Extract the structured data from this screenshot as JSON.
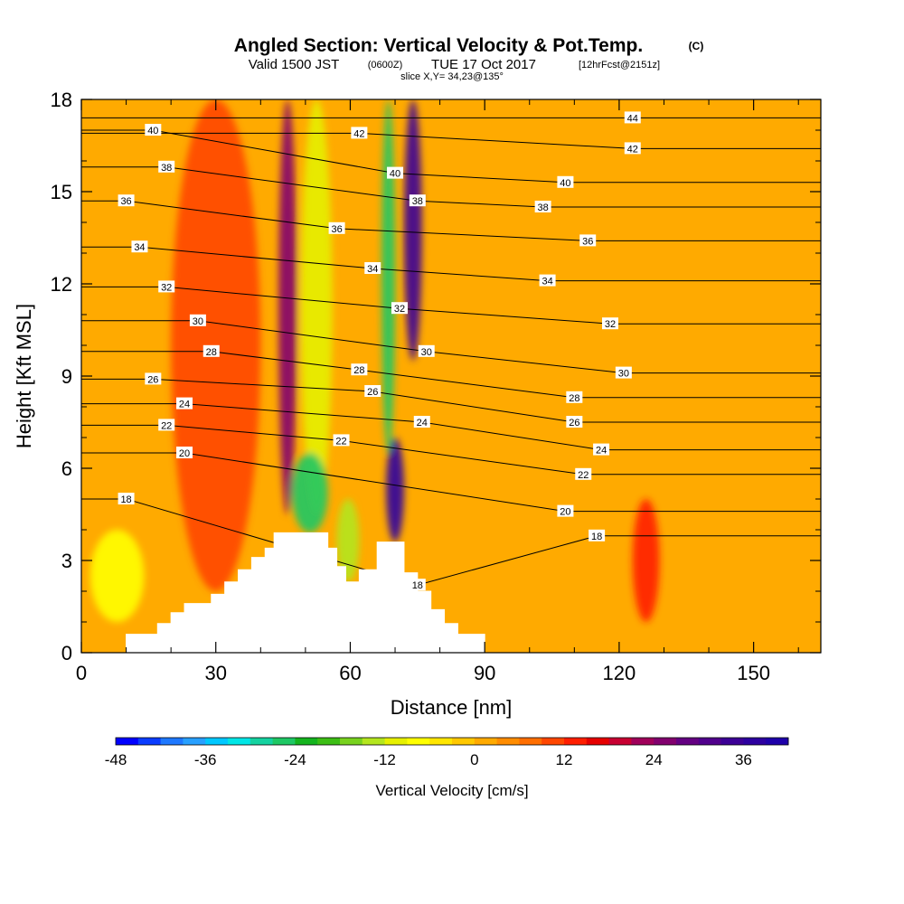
{
  "header": {
    "title": "Angled Section: Vertical Velocity & Pot.Temp.",
    "title_tag": "(C)",
    "valid_prefix": "Valid 1500 JST",
    "valid_zulu": "(0600Z)",
    "valid_date": "TUE 17 Oct 2017",
    "forecast_tag": "[12hrFcst@2151z]",
    "slice": "slice X,Y= 34,23@135°"
  },
  "chart_data": {
    "type": "heatmap",
    "xlabel": "Distance [nm]",
    "ylabel": "Height [Kft MSL]",
    "xlim": [
      0,
      165
    ],
    "ylim": [
      0,
      18
    ],
    "x_ticks": [
      0,
      30,
      60,
      90,
      120,
      150
    ],
    "y_ticks": [
      0,
      3,
      6,
      9,
      12,
      15,
      18
    ],
    "terrain_profile": [
      [
        10,
        0.6
      ],
      [
        17,
        0.6
      ],
      [
        17,
        0.95
      ],
      [
        20,
        0.95
      ],
      [
        20,
        1.3
      ],
      [
        23,
        1.3
      ],
      [
        23,
        1.6
      ],
      [
        29,
        1.6
      ],
      [
        29,
        1.9
      ],
      [
        32,
        1.9
      ],
      [
        32,
        2.3
      ],
      [
        35,
        2.3
      ],
      [
        35,
        2.7
      ],
      [
        38,
        2.7
      ],
      [
        38,
        3.1
      ],
      [
        41,
        3.1
      ],
      [
        41,
        3.4
      ],
      [
        43,
        3.4
      ],
      [
        43,
        3.9
      ],
      [
        55,
        3.9
      ],
      [
        55,
        3.4
      ],
      [
        57,
        3.4
      ],
      [
        57,
        2.8
      ],
      [
        59,
        2.8
      ],
      [
        59,
        2.3
      ],
      [
        62,
        2.3
      ],
      [
        62,
        2.7
      ],
      [
        66,
        2.7
      ],
      [
        66,
        3.6
      ],
      [
        72,
        3.6
      ],
      [
        72,
        2.6
      ],
      [
        75,
        2.6
      ],
      [
        75,
        2.0
      ],
      [
        78,
        2.0
      ],
      [
        78,
        1.4
      ],
      [
        81,
        1.4
      ],
      [
        81,
        0.95
      ],
      [
        84,
        0.95
      ],
      [
        84,
        0.6
      ],
      [
        90,
        0.6
      ]
    ],
    "vertical_velocity_features": [
      {
        "sign": "up",
        "value": 24,
        "x": [
          44,
          48
        ],
        "y": [
          4.5,
          18
        ]
      },
      {
        "sign": "down",
        "value": -12,
        "x": [
          49,
          56
        ],
        "y": [
          4.5,
          18
        ]
      },
      {
        "sign": "down",
        "value": -27,
        "x": [
          47,
          55
        ],
        "y": [
          3.9,
          6.5
        ]
      },
      {
        "sign": "down",
        "value": -27,
        "x": [
          67,
          70
        ],
        "y": [
          6.5,
          18
        ]
      },
      {
        "sign": "up",
        "value": 33,
        "x": [
          72,
          76
        ],
        "y": [
          9.5,
          18
        ]
      },
      {
        "sign": "up",
        "value": 36,
        "x": [
          68,
          72
        ],
        "y": [
          3.6,
          7
        ]
      },
      {
        "sign": "down",
        "value": -15,
        "x": [
          57,
          62
        ],
        "y": [
          2.3,
          5
        ]
      },
      {
        "sign": "up",
        "value": 9,
        "x": [
          20,
          40
        ],
        "y": [
          2,
          18
        ]
      },
      {
        "sign": "down",
        "value": -9,
        "x": [
          2,
          14
        ],
        "y": [
          1,
          4
        ]
      },
      {
        "sign": "up",
        "value": 12,
        "x": [
          123,
          129
        ],
        "y": [
          1,
          5
        ]
      }
    ],
    "pot_temp_contour_labels": [
      {
        "value": "44",
        "x": 123,
        "y": 17.4
      },
      {
        "value": "42",
        "x": 123,
        "y": 16.4
      },
      {
        "value": "42",
        "x": 62,
        "y": 16.9
      },
      {
        "value": "40",
        "x": 16,
        "y": 17.0
      },
      {
        "value": "40",
        "x": 70,
        "y": 15.6
      },
      {
        "value": "40",
        "x": 108,
        "y": 15.3
      },
      {
        "value": "38",
        "x": 19,
        "y": 15.8
      },
      {
        "value": "38",
        "x": 75,
        "y": 14.7
      },
      {
        "value": "38",
        "x": 103,
        "y": 14.5
      },
      {
        "value": "36",
        "x": 10,
        "y": 14.7
      },
      {
        "value": "36",
        "x": 57,
        "y": 13.8
      },
      {
        "value": "36",
        "x": 113,
        "y": 13.4
      },
      {
        "value": "34",
        "x": 13,
        "y": 13.2
      },
      {
        "value": "34",
        "x": 65,
        "y": 12.5
      },
      {
        "value": "34",
        "x": 104,
        "y": 12.1
      },
      {
        "value": "32",
        "x": 19,
        "y": 11.9
      },
      {
        "value": "32",
        "x": 71,
        "y": 11.2
      },
      {
        "value": "32",
        "x": 118,
        "y": 10.7
      },
      {
        "value": "30",
        "x": 26,
        "y": 10.8
      },
      {
        "value": "30",
        "x": 77,
        "y": 9.8
      },
      {
        "value": "30",
        "x": 121,
        "y": 9.1
      },
      {
        "value": "28",
        "x": 29,
        "y": 9.8
      },
      {
        "value": "28",
        "x": 62,
        "y": 9.2
      },
      {
        "value": "28",
        "x": 110,
        "y": 8.3
      },
      {
        "value": "26",
        "x": 16,
        "y": 8.9
      },
      {
        "value": "26",
        "x": 65,
        "y": 8.5
      },
      {
        "value": "26",
        "x": 110,
        "y": 7.5
      },
      {
        "value": "24",
        "x": 23,
        "y": 8.1
      },
      {
        "value": "24",
        "x": 76,
        "y": 7.5
      },
      {
        "value": "24",
        "x": 116,
        "y": 6.6
      },
      {
        "value": "22",
        "x": 19,
        "y": 7.4
      },
      {
        "value": "22",
        "x": 58,
        "y": 6.9
      },
      {
        "value": "22",
        "x": 112,
        "y": 5.8
      },
      {
        "value": "20",
        "x": 23,
        "y": 6.5
      },
      {
        "value": "20",
        "x": 108,
        "y": 4.6
      },
      {
        "value": "18",
        "x": 10,
        "y": 5.0
      },
      {
        "value": "18",
        "x": 115,
        "y": 3.8
      },
      {
        "value": "18",
        "x": 75,
        "y": 2.2
      }
    ]
  },
  "colorbar": {
    "title": "Vertical Velocity [cm/s]",
    "min": -48,
    "max": 42,
    "step": 3,
    "tick_values": [
      -48,
      -36,
      -24,
      -12,
      0,
      12,
      24,
      36
    ],
    "tick_labels": [
      "-48",
      "-36",
      "-24",
      "-12",
      "0",
      "12",
      "24",
      "36"
    ],
    "colors": [
      "#0000ff",
      "#0a3cff",
      "#1e78ff",
      "#28a0ff",
      "#00c8ff",
      "#00e6e6",
      "#14d2a0",
      "#1ec864",
      "#14b41e",
      "#3cbe14",
      "#78d21e",
      "#b4e61e",
      "#e6f000",
      "#ffff00",
      "#ffe600",
      "#ffc800",
      "#ffaa00",
      "#ff8c00",
      "#ff6e00",
      "#ff4600",
      "#ff1e00",
      "#e60000",
      "#c80032",
      "#a0005a",
      "#82006e",
      "#640082",
      "#50008c",
      "#3c0096",
      "#2d00a0",
      "#1e00aa"
    ]
  }
}
